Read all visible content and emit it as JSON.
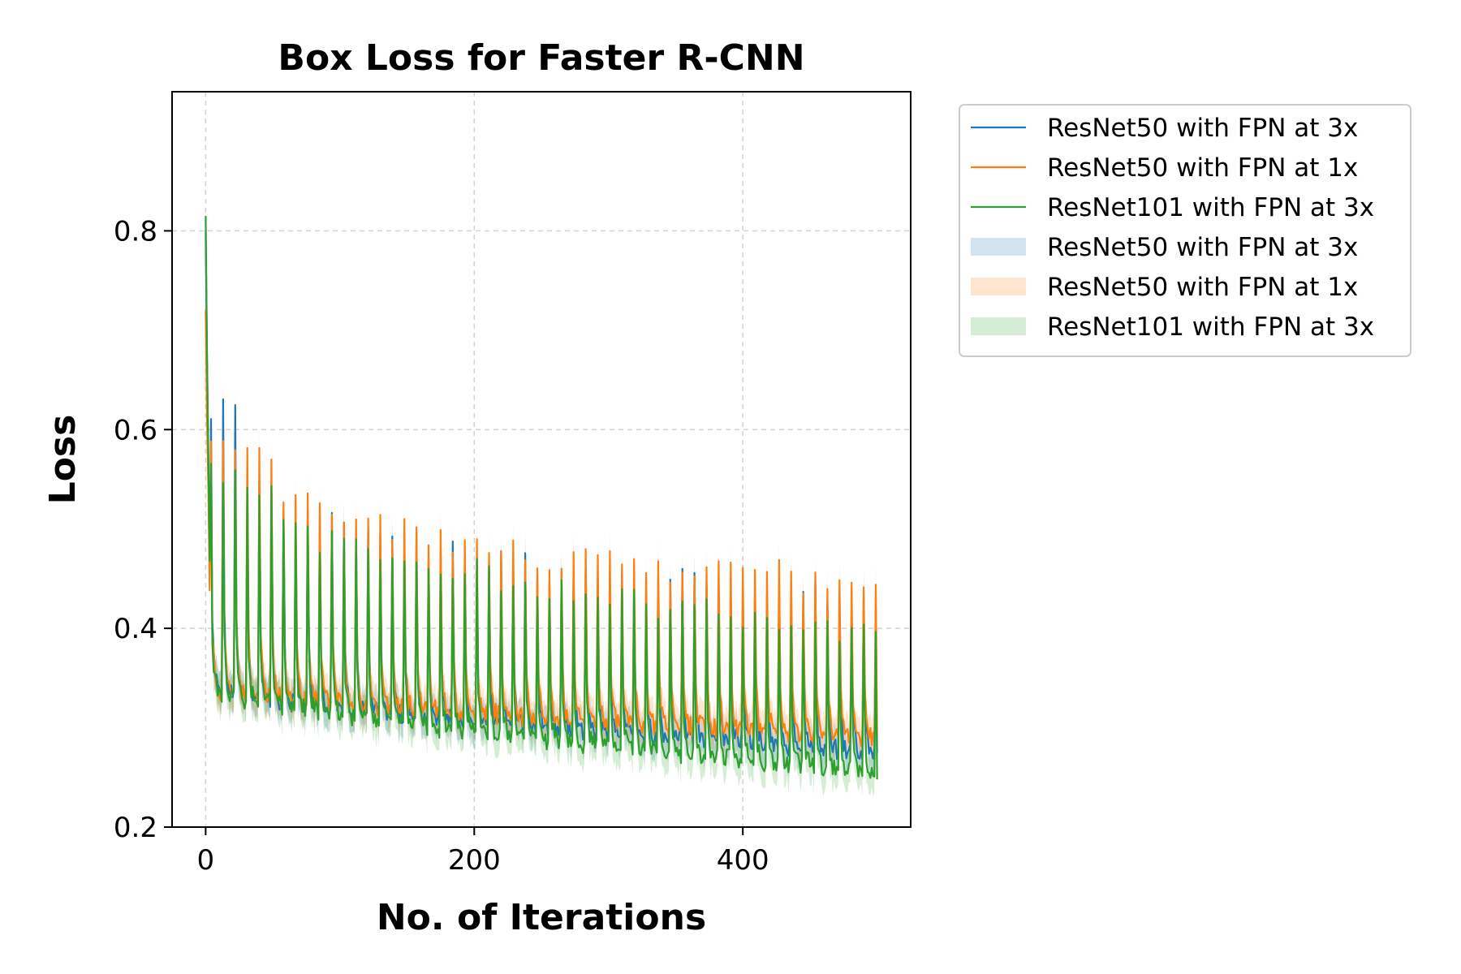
{
  "chart_data": {
    "type": "line",
    "title": "Box Loss for Faster R-CNN",
    "xlabel": "No. of Iterations",
    "ylabel": "Loss",
    "xlim": [
      -25,
      525
    ],
    "ylim": [
      0.2,
      0.94
    ],
    "x_ticks": [
      0,
      200,
      400
    ],
    "x_tick_labels": [
      "0",
      "200",
      "400"
    ],
    "y_ticks": [
      0.2,
      0.4,
      0.6,
      0.8
    ],
    "y_tick_labels": [
      "0.2",
      "0.4",
      "0.6",
      "0.8"
    ],
    "grid": true,
    "legend_position": "outside-right",
    "iterations": [
      0,
      500
    ],
    "series": [
      {
        "name": "ResNet50 with FPN at 3x",
        "color": "#1f77b4",
        "start": 0.8,
        "peaks": [
          0.635,
          0.55,
          0.53,
          0.52,
          0.51,
          0.5,
          0.49,
          0.48,
          0.48,
          0.47,
          0.47,
          0.46,
          0.46,
          0.46,
          0.46,
          0.45,
          0.45,
          0.44,
          0.44,
          0.44,
          0.43,
          0.43,
          0.43,
          0.42
        ],
        "troughs_start": 0.34,
        "troughs_end": 0.275,
        "end": 0.275
      },
      {
        "name": "ResNet50 with FPN at 1x",
        "color": "#ff7f0e",
        "start": 0.72,
        "peaks": [
          0.59,
          0.59,
          0.55,
          0.53,
          0.52,
          0.51,
          0.5,
          0.5,
          0.49,
          0.48,
          0.48,
          0.48,
          0.47,
          0.47,
          0.47,
          0.47,
          0.46,
          0.46,
          0.46,
          0.46,
          0.45,
          0.45,
          0.45,
          0.46
        ],
        "troughs_start": 0.34,
        "troughs_end": 0.29,
        "end": 0.295
      },
      {
        "name": "ResNet101 with FPN at 3x",
        "color": "#2ca02c",
        "start": 0.815,
        "peaks": [
          0.57,
          0.55,
          0.52,
          0.5,
          0.49,
          0.48,
          0.47,
          0.47,
          0.46,
          0.45,
          0.45,
          0.44,
          0.43,
          0.43,
          0.42,
          0.42,
          0.41,
          0.41,
          0.41,
          0.4,
          0.4,
          0.4,
          0.4,
          0.4
        ],
        "troughs_start": 0.34,
        "troughs_end": 0.255,
        "end": 0.248
      }
    ],
    "bands": [
      {
        "name": "ResNet50 with FPN at 3x",
        "color": "#1f77b4",
        "opacity": 0.2
      },
      {
        "name": "ResNet50 with FPN at 1x",
        "color": "#ff7f0e",
        "opacity": 0.2
      },
      {
        "name": "ResNet101 with FPN at 3x",
        "color": "#2ca02c",
        "opacity": 0.2
      }
    ]
  }
}
